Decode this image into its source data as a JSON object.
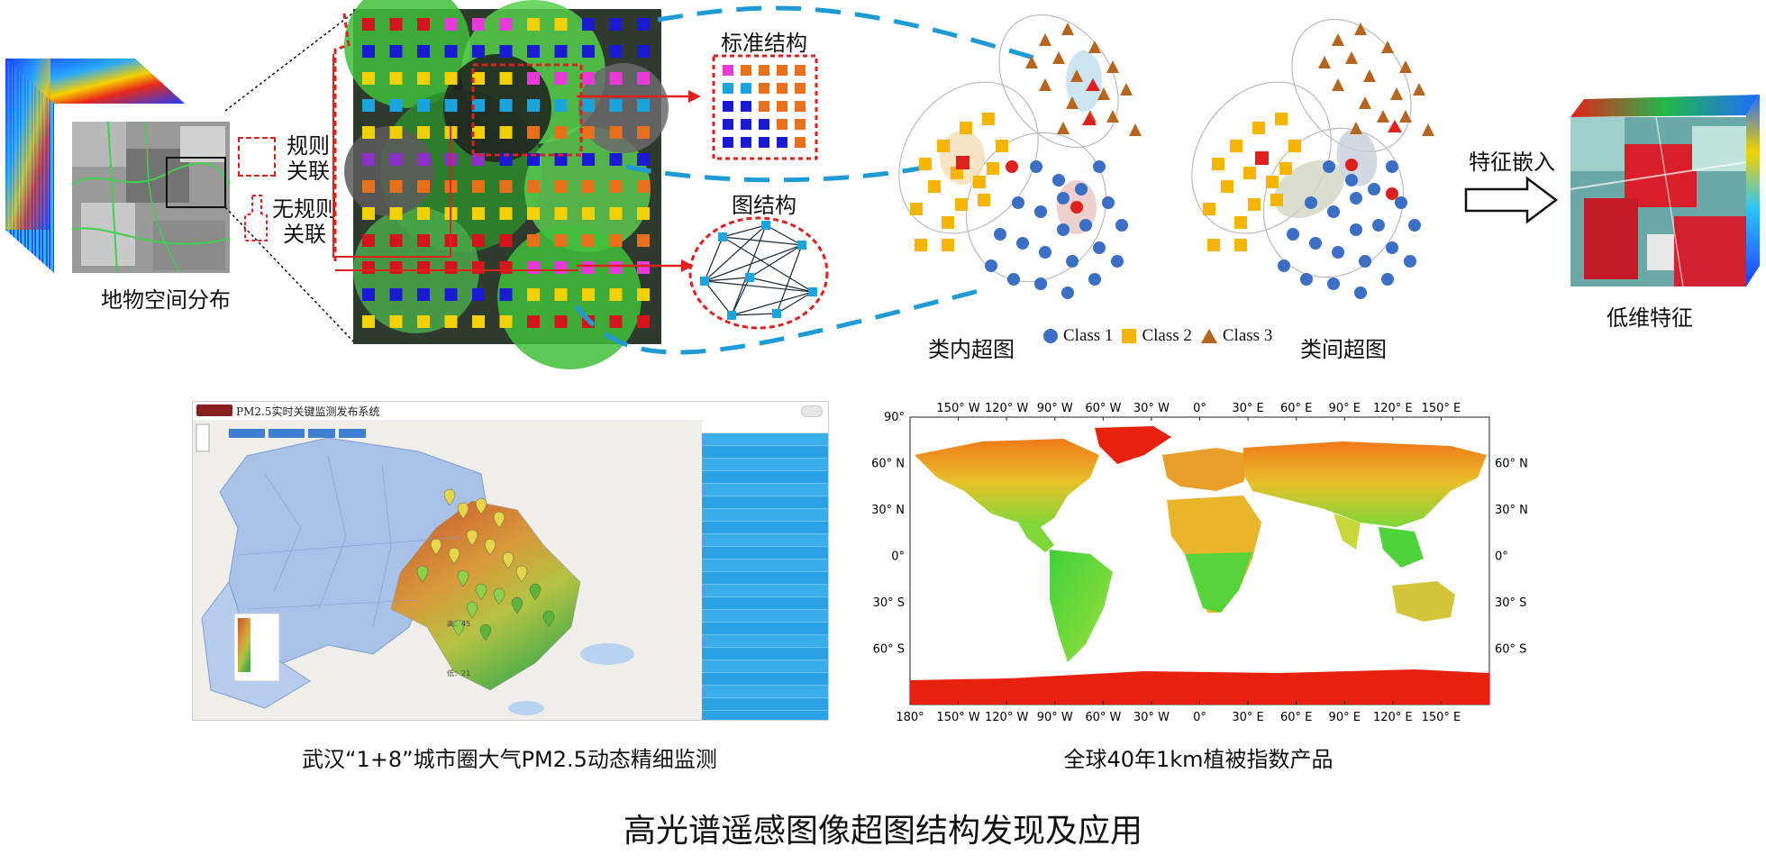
{
  "top": {
    "spatial_label": "地物空间分布",
    "legend_regular": "规则\n关联",
    "legend_irregular": "无规则\n关联",
    "standard_structure": "标准结构",
    "graph_structure": "图结构",
    "intra_hypergraph": "类内超图",
    "inter_hypergraph": "类间超图",
    "feature_embedding": "特征嵌入",
    "low_dim_features": "低维特征",
    "class_legend": [
      {
        "label": "Class 1",
        "shape": "circle",
        "color": "#3b6fc6"
      },
      {
        "label": "Class 2",
        "shape": "square",
        "color": "#f7b500"
      },
      {
        "label": "Class 3",
        "shape": "triangle",
        "color": "#b5651d"
      }
    ]
  },
  "colors": {
    "accent_dash": "#1e9bd7",
    "red": "#e0201c",
    "class1": "#3b6fc6",
    "class2": "#f7b500",
    "class3": "#b5651d"
  },
  "bottom_left": {
    "app_title": "PM2.5实时关键监测发布系统",
    "caption": "武汉“1+8”城市圈大气PM2.5动态精细监测",
    "legend_high": "高：45",
    "legend_low": "低：21"
  },
  "bottom_right": {
    "caption": "全球40年1km植被指数产品",
    "top_ticks": [
      "150° W",
      "120° W",
      "90° W",
      "60° W",
      "30° W",
      "0°",
      "30° E",
      "60° E",
      "90° E",
      "120° E",
      "150° E"
    ],
    "bottom_ticks": [
      "180°",
      "150° W",
      "120° W",
      "90° W",
      "60° W",
      "30° W",
      "0°",
      "30° E",
      "60° E",
      "90° E",
      "120° E",
      "150° E"
    ],
    "left_ticks": [
      "90°",
      "60° N",
      "30° N",
      "0°",
      "30° S",
      "60° S"
    ],
    "right_ticks": [
      "60° N",
      "30° N",
      "0°",
      "30° S",
      "60° S"
    ]
  },
  "title": "高光谱遥感图像超图结构发现及应用"
}
